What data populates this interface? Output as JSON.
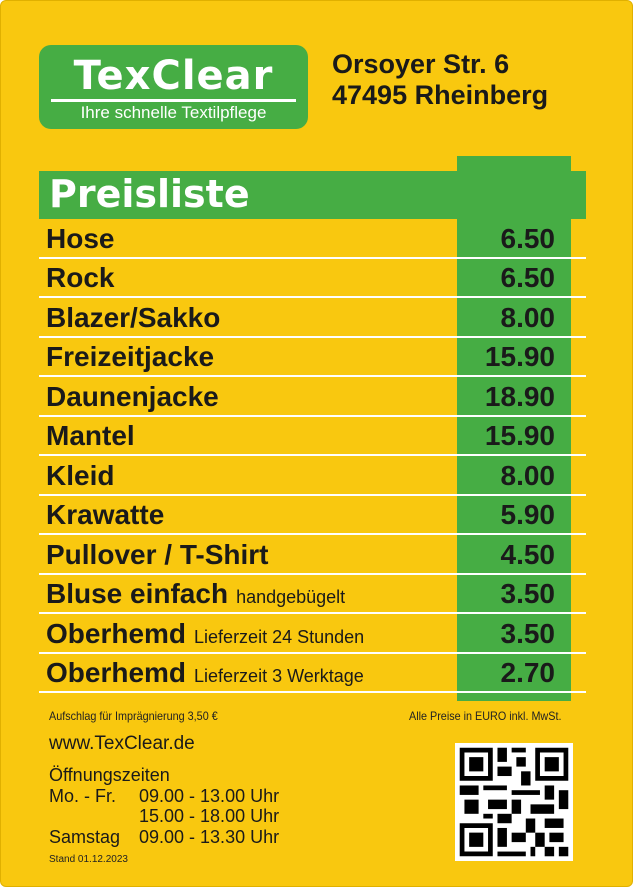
{
  "logo": {
    "name": "TexClear",
    "tagline": "Ihre schnelle Textilpflege"
  },
  "address": {
    "street": "Orsoyer Str. 6",
    "city": "47495 Rheinberg"
  },
  "title": "Preisliste",
  "items": [
    {
      "name": "Hose",
      "note": "",
      "price": "6.50"
    },
    {
      "name": "Rock",
      "note": "",
      "price": "6.50"
    },
    {
      "name": "Blazer/Sakko",
      "note": "",
      "price": "8.00"
    },
    {
      "name": "Freizeitjacke",
      "note": "",
      "price": "15.90"
    },
    {
      "name": "Daunenjacke",
      "note": "",
      "price": "18.90"
    },
    {
      "name": "Mantel",
      "note": "",
      "price": "15.90"
    },
    {
      "name": "Kleid",
      "note": "",
      "price": "8.00"
    },
    {
      "name": "Krawatte",
      "note": "",
      "price": "5.90"
    },
    {
      "name": "Pullover / T-Shirt",
      "note": "",
      "price": "4.50"
    },
    {
      "name": "Bluse einfach",
      "note": "handgebügelt",
      "price": "3.50"
    },
    {
      "name": "Oberhemd",
      "note": "Lieferzeit 24 Stunden",
      "price": "3.50"
    },
    {
      "name": "Oberhemd",
      "note": "Lieferzeit 3 Werktage",
      "price": "2.70"
    }
  ],
  "surcharge": "Aufschlag für Imprägnierung  3,50 €",
  "vat_note": "Alle Preise in EURO inkl. MwSt.",
  "website": "www.TexClear.de",
  "hours": {
    "title": "Öffnungszeiten",
    "lines": [
      {
        "day": "Mo. - Fr.",
        "time": "09.00 - 13.00 Uhr"
      },
      {
        "day": "",
        "time": "15.00 - 18.00 Uhr"
      },
      {
        "day": "Samstag",
        "time": "09.00 - 13.30 Uhr"
      }
    ]
  },
  "stand": "Stand 01.12.2023",
  "colors": {
    "background": "#f9c80f",
    "green": "#46ad44"
  }
}
